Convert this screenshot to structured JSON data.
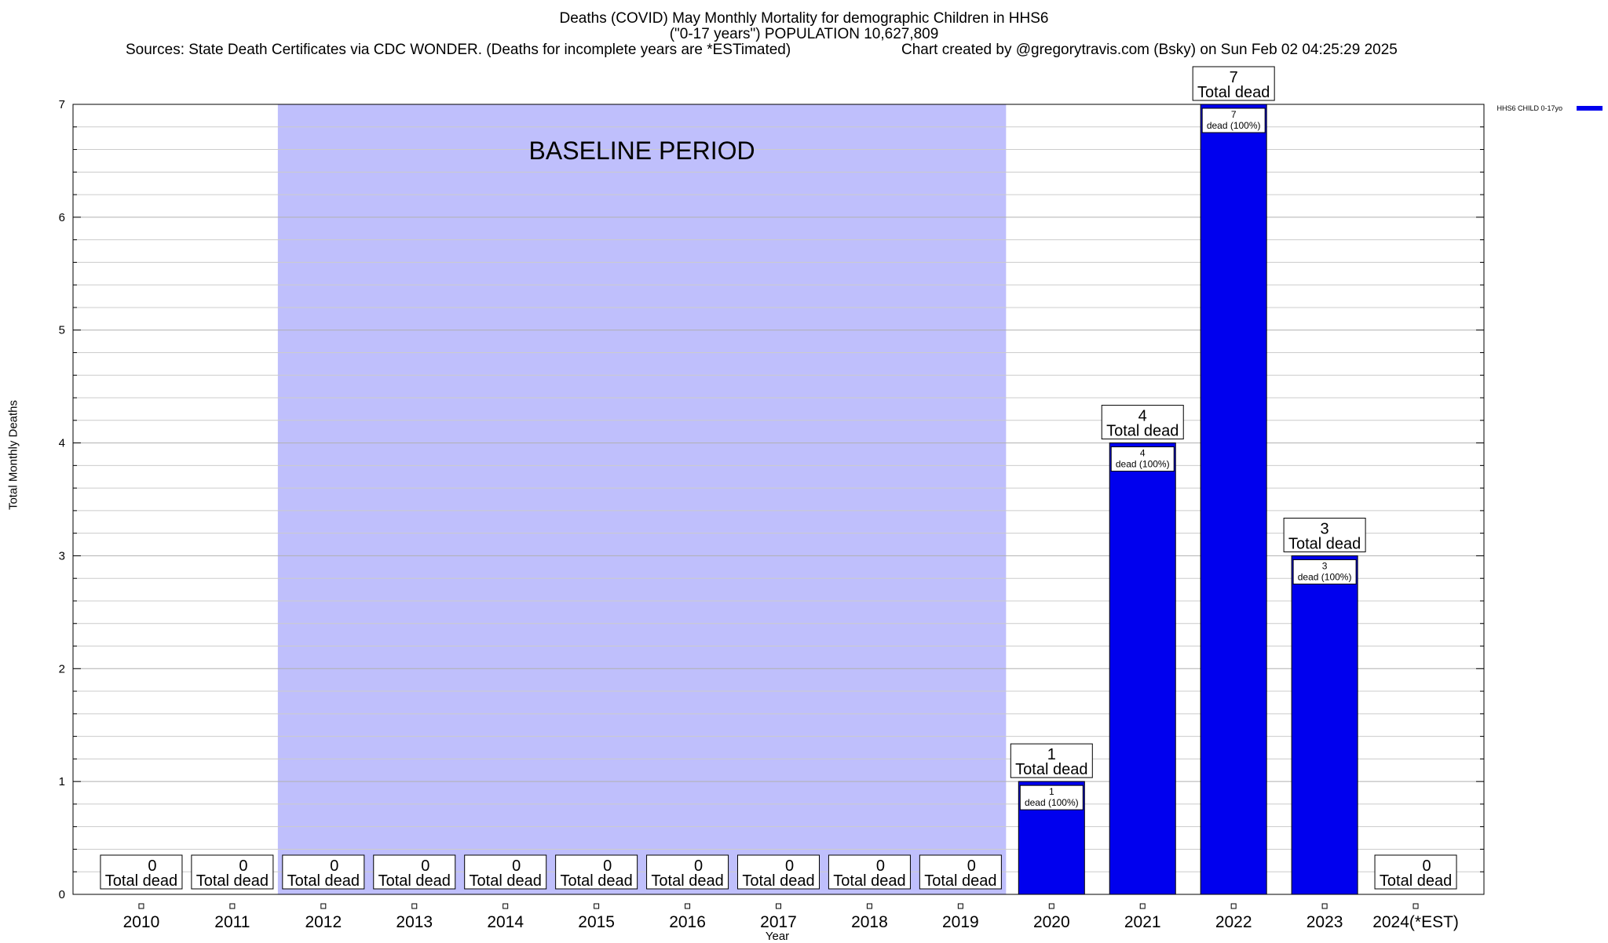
{
  "header": {
    "title_line1": "Deaths (COVID) May Monthly Mortality for demographic Children in HHS6",
    "title_line2": "(\"0-17 years\") POPULATION 10,627,809",
    "sources": "Sources: State Death Certificates via CDC WONDER. (Deaths for incomplete years are *ESTimated)",
    "credit": "Chart created by @gregorytravis.com (Bsky) on Sun Feb 02 04:25:29 2025"
  },
  "chart_data": {
    "type": "bar",
    "categories": [
      "2010",
      "2011",
      "2012",
      "2013",
      "2014",
      "2015",
      "2016",
      "2017",
      "2018",
      "2019",
      "2020",
      "2021",
      "2022",
      "2023",
      "2024(*EST)"
    ],
    "series": [
      {
        "name": "HHS6 CHILD 0-17yo",
        "values": [
          0,
          0,
          0,
          0,
          0,
          0,
          0,
          0,
          0,
          0,
          1,
          4,
          7,
          3,
          0
        ]
      }
    ],
    "xlabel": "Year",
    "ylabel": "Total Monthly Deaths",
    "ylim": [
      0,
      7
    ],
    "yticks": [
      0,
      1,
      2,
      3,
      4,
      5,
      6,
      7
    ],
    "grid": true,
    "legend_position": "top-right",
    "bar_color": "#0000ee",
    "baseline_color": "#bfbffc",
    "baseline_period": {
      "label": "BASELINE PERIOD",
      "from": "2012",
      "to": "2019"
    },
    "total_label_suffix": "Total dead",
    "inner_label_suffix": "dead (100%)"
  }
}
